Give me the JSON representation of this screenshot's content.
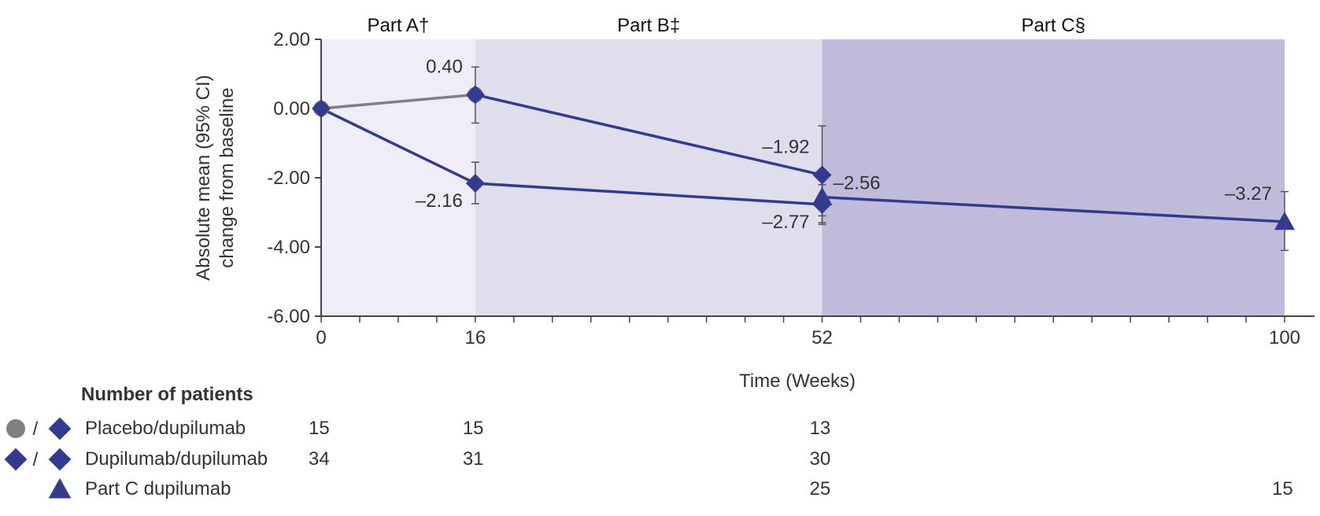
{
  "colors": {
    "placebo": "#808080",
    "dupilumab": "#333b8f",
    "part_a_bg": "#efedf7",
    "part_b_bg": "#e0ddec",
    "part_c_bg": "#c1bbdb",
    "axis": "#444444"
  },
  "chart_data": {
    "type": "line",
    "xlabel": "Time (Weeks)",
    "ylabel_lines": [
      "Absolute mean (95% CI)",
      "change from baseline"
    ],
    "x_ticks": [
      "0",
      "16",
      "52",
      "100"
    ],
    "y_ticks": [
      "2.00",
      "0.00",
      "-2.00",
      "-4.00",
      "-6.00"
    ],
    "xlim": [
      0,
      100
    ],
    "ylim": [
      -6,
      2
    ],
    "grid": false,
    "parts": [
      {
        "label": "Part A†",
        "x_start": 0,
        "x_end": 16
      },
      {
        "label": "Part B‡",
        "x_start": 16,
        "x_end": 52
      },
      {
        "label": "Part C§",
        "x_start": 52,
        "x_end": 100
      }
    ],
    "series": [
      {
        "name": "Placebo/dupilumab",
        "segments": [
          {
            "marker": "circle",
            "color_key": "placebo",
            "points": [
              {
                "x": 0,
                "y": 0
              },
              {
                "x": 16,
                "y": 0.4
              }
            ]
          },
          {
            "marker": "diamond",
            "color_key": "dupilumab",
            "points": [
              {
                "x": 16,
                "y": 0.4
              },
              {
                "x": 52,
                "y": -1.92
              }
            ]
          }
        ],
        "error_bars": [
          {
            "x": 16,
            "low": -0.42,
            "high": 1.2
          },
          {
            "x": 52,
            "low": -3.3,
            "high": -0.5
          }
        ],
        "data_labels": [
          {
            "x": 16,
            "y": 0.4,
            "text": "0.40",
            "pos": "left-above"
          },
          {
            "x": 52,
            "y": -1.92,
            "text": "–1.92",
            "pos": "left-above"
          }
        ]
      },
      {
        "name": "Dupilumab/dupilumab",
        "segments": [
          {
            "marker": "diamond",
            "color_key": "dupilumab",
            "points": [
              {
                "x": 0,
                "y": 0
              },
              {
                "x": 16,
                "y": -2.16
              },
              {
                "x": 52,
                "y": -2.77
              }
            ]
          }
        ],
        "error_bars": [
          {
            "x": 16,
            "low": -2.75,
            "high": -1.55
          },
          {
            "x": 52,
            "low": -3.35,
            "high": -2.2
          }
        ],
        "data_labels": [
          {
            "x": 16,
            "y": -2.16,
            "text": "–2.16",
            "pos": "left-below"
          },
          {
            "x": 52,
            "y": -2.77,
            "text": "–2.77",
            "pos": "left-below"
          }
        ]
      },
      {
        "name": "Part C dupilumab",
        "segments": [
          {
            "marker": "triangle",
            "color_key": "dupilumab",
            "points": [
              {
                "x": 52,
                "y": -2.56
              },
              {
                "x": 100,
                "y": -3.27
              }
            ]
          }
        ],
        "error_bars": [
          {
            "x": 52,
            "low": -3.1,
            "high": -2.0
          },
          {
            "x": 100,
            "low": -4.1,
            "high": -2.4
          }
        ],
        "data_labels": [
          {
            "x": 52,
            "y": -2.56,
            "text": "–2.56",
            "pos": "right-above"
          },
          {
            "x": 100,
            "y": -3.27,
            "text": "–3.27",
            "pos": "left-above"
          }
        ]
      }
    ]
  },
  "patients_table": {
    "title": "Number of patients",
    "separator": "/",
    "rows": [
      {
        "label": "Placebo/dupilumab",
        "icons": [
          "circle",
          "diamond"
        ],
        "counts": [
          "15",
          "15",
          "13",
          ""
        ]
      },
      {
        "label": "Dupilumab/dupilumab",
        "icons": [
          "diamond",
          "diamond"
        ],
        "counts": [
          "34",
          "31",
          "30",
          ""
        ]
      },
      {
        "label": "Part C dupilumab",
        "icons": [
          "triangle"
        ],
        "counts": [
          "",
          "",
          "25",
          "15"
        ]
      }
    ]
  }
}
